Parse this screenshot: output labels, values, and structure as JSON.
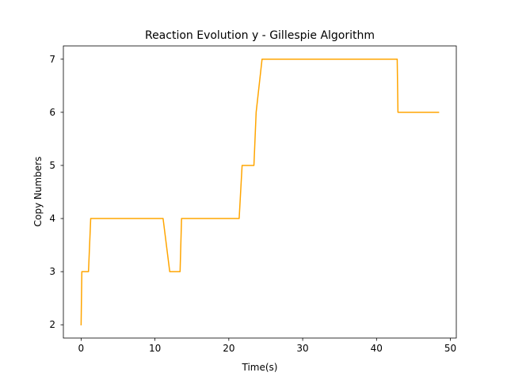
{
  "chart_data": {
    "type": "line",
    "title": "Reaction Evolution y - Gillespie Algorithm",
    "xlabel": "Time(s)",
    "ylabel": "Copy Numbers",
    "xlim": [
      -2.4,
      50.8
    ],
    "ylim": [
      1.75,
      7.25
    ],
    "x_ticks": [
      0,
      10,
      20,
      30,
      40,
      50
    ],
    "y_ticks": [
      2,
      3,
      4,
      5,
      6,
      7
    ],
    "grid": false,
    "legend": "none",
    "series": [
      {
        "color": "#FFA500",
        "x": [
          0.0,
          0.1,
          1.0,
          1.3,
          11.1,
          12.0,
          13.4,
          13.6,
          21.4,
          21.8,
          23.4,
          23.7,
          24.5,
          42.8,
          42.9,
          48.4
        ],
        "y": [
          2,
          3,
          3,
          4,
          4,
          3,
          3,
          4,
          4,
          5,
          5,
          6,
          7,
          7,
          6,
          6
        ]
      }
    ]
  }
}
